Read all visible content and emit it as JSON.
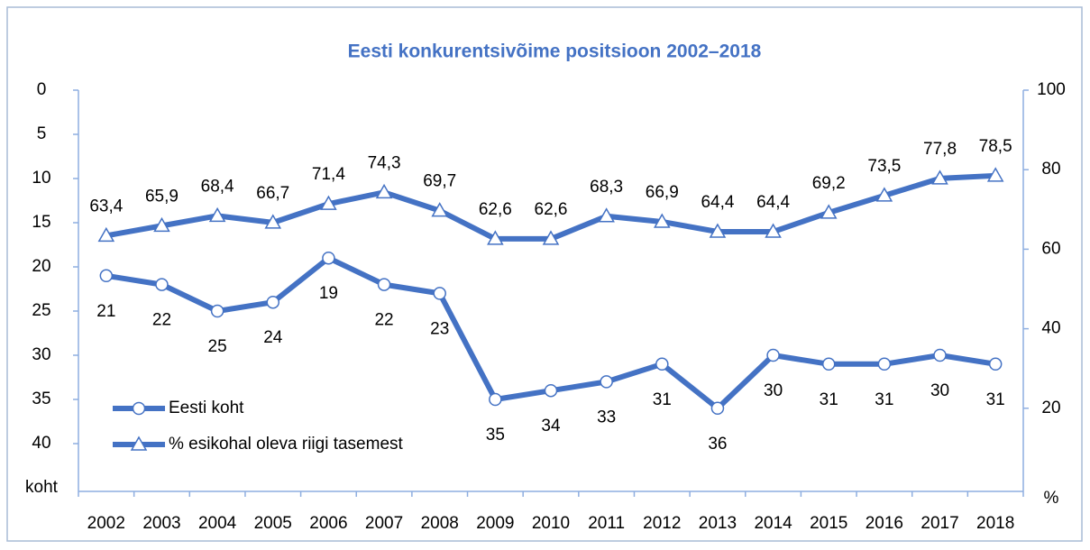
{
  "chart_data": {
    "type": "line",
    "title": "Eesti konkurentsivõime positsioon 2002–2018",
    "y_label": "koht",
    "y2_label": "%",
    "categories": [
      "2002",
      "2003",
      "2004",
      "2005",
      "2006",
      "2007",
      "2008",
      "2009",
      "2010",
      "2011",
      "2012",
      "2013",
      "2014",
      "2015",
      "2016",
      "2017",
      "2018"
    ],
    "ylim": [
      0,
      45
    ],
    "y_inverted": true,
    "yticks": [
      0,
      5,
      10,
      15,
      20,
      25,
      30,
      35,
      40
    ],
    "y2lim": [
      0,
      100
    ],
    "y2ticks": [
      20,
      40,
      60,
      80,
      100
    ],
    "legend": "lower left",
    "series": [
      {
        "name": "Eesti koht",
        "color": "#4472c4",
        "marker": "circle",
        "values": [
          21,
          22,
          25,
          24,
          19,
          22,
          23,
          35,
          34,
          33,
          31,
          36,
          30,
          31,
          31,
          30,
          31
        ]
      },
      {
        "name": "% esikohal oleva riigi tasemest",
        "color": "#4472c4",
        "marker": "triangle",
        "axis": "y2",
        "values": [
          63.4,
          65.9,
          68.4,
          66.7,
          71.4,
          74.3,
          69.7,
          62.6,
          62.6,
          68.3,
          66.9,
          64.4,
          64.4,
          69.2,
          73.5,
          77.8,
          78.5
        ],
        "value_labels": [
          "63,4",
          "65,9",
          "68,4",
          "66,7",
          "71,4",
          "74,3",
          "69,7",
          "62,6",
          "62,6",
          "68,3",
          "66,9",
          "64,4",
          "64,4",
          "69,2",
          "73,5",
          "77,8",
          "78,5"
        ]
      }
    ]
  }
}
